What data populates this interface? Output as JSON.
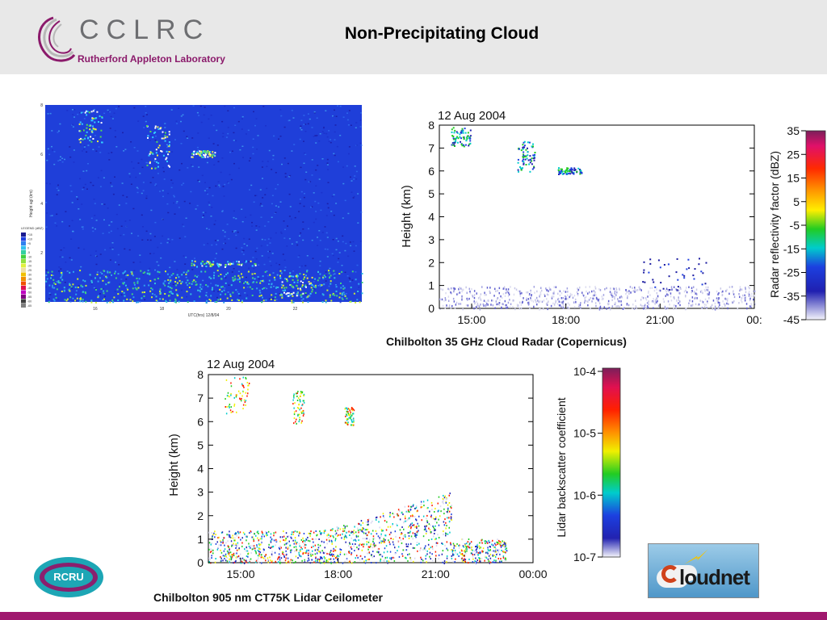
{
  "header": {
    "logo_name": "CCLRC",
    "logo_subtitle": "Rutherford Appleton Laboratory",
    "title": "Non-Precipitating Cloud"
  },
  "logos": {
    "rcru": "RCRU",
    "cloudnet": "loudnet"
  },
  "colors": {
    "header_bg": "#e8e8e8",
    "footer": "#a0186e",
    "plot_bg_blue": "#1f3fd9"
  },
  "chart_data": [
    {
      "type": "heatmap",
      "title": "",
      "xlabel": "UTC(hrs) 12/8/04",
      "ylabel": "Height agl (km)",
      "x_ticks": [
        "16",
        "18",
        "20",
        "22"
      ],
      "y_ticks": [
        "2",
        "4",
        "6",
        "8"
      ],
      "legend_title": "LEGEND (dBZ)",
      "legend_values": [
        "+15",
        "+10",
        "+5",
        "0",
        "-5",
        "-10",
        "-15",
        "-20",
        "-25",
        "-30",
        "-35",
        "-40",
        "-45",
        "-50",
        "-55",
        "-60",
        "-65"
      ],
      "xlim": [
        14.5,
        24
      ],
      "ylim": [
        0,
        8
      ]
    },
    {
      "type": "heatmap",
      "date": "12 Aug 2004",
      "title": "Chilbolton 35 GHz Cloud Radar (Copernicus)",
      "xlabel": "",
      "ylabel": "Height (km)",
      "x_ticks": [
        "15:00",
        "18:00",
        "21:00",
        "00:"
      ],
      "y_ticks": [
        "0",
        "1",
        "2",
        "3",
        "4",
        "5",
        "6",
        "7",
        "8"
      ],
      "colorbar_label": "Radar reflectivity factor (dBZ)",
      "colorbar_ticks": [
        "35",
        "25",
        "15",
        "5",
        "-5",
        "-15",
        "-25",
        "-35",
        "-45"
      ],
      "ylim": [
        0,
        8
      ],
      "clim": [
        -45,
        35
      ]
    },
    {
      "type": "heatmap",
      "date": "12 Aug 2004",
      "title": "Chilbolton 905 nm CT75K Lidar Ceilometer",
      "xlabel": "",
      "ylabel": "Height (km)",
      "x_ticks": [
        "15:00",
        "18:00",
        "21:00",
        "00:00"
      ],
      "y_ticks": [
        "0",
        "1",
        "2",
        "3",
        "4",
        "5",
        "6",
        "7",
        "8"
      ],
      "colorbar_label": "Lidar backscatter coefficient",
      "colorbar_ticks": [
        "10-4",
        "10-5",
        "10-6",
        "10-7"
      ],
      "colorbar_scale": "log",
      "ylim": [
        0,
        8
      ],
      "clim": [
        1e-07,
        0.0001
      ]
    }
  ]
}
